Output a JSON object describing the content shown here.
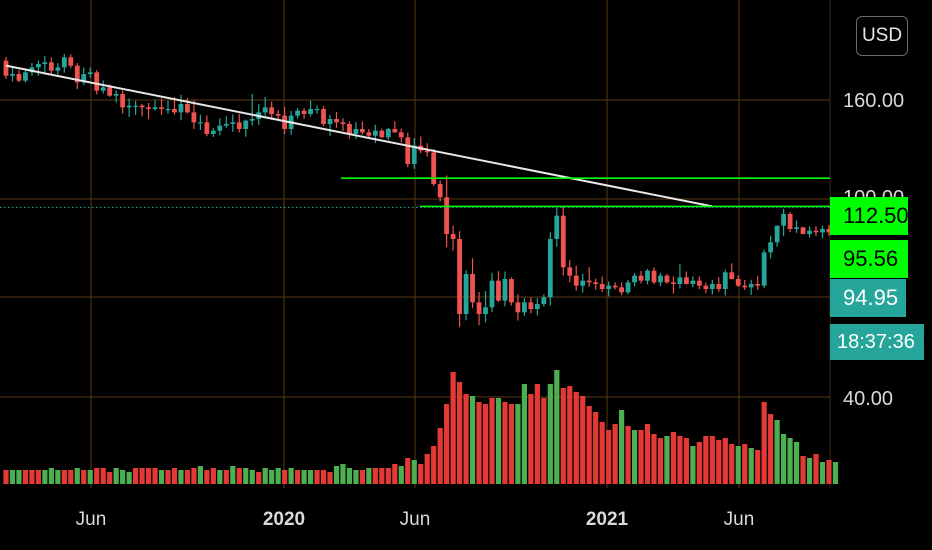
{
  "chart_data": {
    "type": "candlestick",
    "currency": "USD",
    "yticks": [
      {
        "value": 160,
        "label": "160.00"
      },
      {
        "value": 100,
        "label": "100.00"
      },
      {
        "value": 40,
        "label": "40.00"
      }
    ],
    "xticks": [
      {
        "label": "Jun",
        "bold": false
      },
      {
        "label": "2020",
        "bold": true
      },
      {
        "label": "Jun",
        "bold": false
      },
      {
        "label": "2021",
        "bold": true
      },
      {
        "label": "Jun",
        "bold": false
      }
    ],
    "price_levels": [
      {
        "name": "resistance-1",
        "value": 112.5,
        "label": "112.50",
        "color": "#00ff00"
      },
      {
        "name": "resistance-2",
        "value": 95.56,
        "label": "95.56",
        "color": "#00ff00"
      }
    ],
    "last_price": {
      "value": 94.95,
      "label": "94.95",
      "color": "#26a69a"
    },
    "countdown": "18:37:36",
    "trendline": {
      "start": {
        "month": 0.0,
        "price": 180
      },
      "end": {
        "month": 21.8,
        "price": 95.56
      }
    },
    "candles": [
      [
        0.0,
        183,
        185.3,
        172.1,
        174
      ],
      [
        0.2,
        174,
        179.1,
        170.5,
        175
      ],
      [
        0.4,
        175,
        177.4,
        170.1,
        171
      ],
      [
        0.6,
        171,
        177.2,
        169.9,
        176
      ],
      [
        0.8,
        176,
        181.6,
        173.9,
        179
      ],
      [
        1.0,
        179,
        183.1,
        173.9,
        181
      ],
      [
        1.2,
        181,
        185.9,
        176.1,
        182
      ],
      [
        1.4,
        182,
        185.0,
        175.2,
        177
      ],
      [
        1.6,
        177,
        181.5,
        174.7,
        179
      ],
      [
        1.8,
        179,
        187.0,
        175.8,
        185
      ],
      [
        2.0,
        185,
        186.8,
        178.5,
        180
      ],
      [
        2.2,
        180,
        181.5,
        165.9,
        170
      ],
      [
        2.4,
        170,
        178.9,
        168.3,
        175
      ],
      [
        2.6,
        175,
        178.9,
        172.7,
        176
      ],
      [
        2.8,
        176,
        177.3,
        162.8,
        165
      ],
      [
        3.0,
        165,
        171.2,
        163.2,
        167
      ],
      [
        3.2,
        167,
        168.8,
        161.3,
        162
      ],
      [
        3.4,
        162,
        165.2,
        158.0,
        163
      ],
      [
        3.6,
        163,
        164.9,
        151.3,
        155
      ],
      [
        3.8,
        155,
        160.4,
        149.2,
        156
      ],
      [
        4.0,
        156,
        158.9,
        150.5,
        156
      ],
      [
        4.2,
        156,
        157.1,
        149.6,
        155
      ],
      [
        4.4,
        155,
        157.6,
        147.9,
        154
      ],
      [
        4.6,
        154,
        159.3,
        153.1,
        155
      ],
      [
        4.8,
        155,
        160.4,
        150.4,
        154
      ],
      [
        5.0,
        154,
        159.0,
        151.2,
        154
      ],
      [
        5.2,
        154,
        161.1,
        150.6,
        152
      ],
      [
        5.4,
        152,
        162.5,
        147.2,
        157
      ],
      [
        5.6,
        157,
        160.5,
        151.3,
        152
      ],
      [
        5.8,
        152,
        159.2,
        142.0,
        146
      ],
      [
        6.0,
        146,
        150.7,
        141.4,
        146
      ],
      [
        6.2,
        146,
        150.2,
        137.6,
        139
      ],
      [
        6.4,
        139,
        142.6,
        137.2,
        141
      ],
      [
        6.6,
        141,
        148.5,
        138.3,
        144
      ],
      [
        6.8,
        144,
        149.7,
        142.7,
        145
      ],
      [
        7.0,
        145,
        150.8,
        140.3,
        146
      ],
      [
        7.2,
        146,
        151.0,
        140.0,
        142
      ],
      [
        7.4,
        142,
        147.7,
        137.4,
        147
      ],
      [
        7.6,
        147,
        163.1,
        144.1,
        148
      ],
      [
        7.8,
        148,
        157.0,
        144.5,
        152
      ],
      [
        8.0,
        152,
        161.3,
        150.0,
        155
      ],
      [
        8.2,
        155,
        158.5,
        147.5,
        151
      ],
      [
        8.4,
        151,
        153.3,
        147.7,
        150
      ],
      [
        8.6,
        150,
        155.2,
        139.0,
        142
      ],
      [
        8.8,
        142,
        152.8,
        138.5,
        150
      ],
      [
        9.0,
        150,
        154.6,
        148.3,
        153
      ],
      [
        9.2,
        153,
        154.5,
        148.1,
        151
      ],
      [
        9.4,
        151,
        159.0,
        149.5,
        154
      ],
      [
        9.6,
        154,
        156.0,
        151.2,
        154
      ],
      [
        9.8,
        154,
        155.8,
        143.7,
        145
      ],
      [
        10.0,
        145,
        150.4,
        137.9,
        148
      ],
      [
        10.2,
        148,
        152.2,
        142.8,
        146
      ],
      [
        10.4,
        146,
        148.5,
        140.8,
        145
      ],
      [
        10.6,
        145,
        146.6,
        136.2,
        139
      ],
      [
        10.8,
        139,
        146.1,
        136.0,
        142
      ],
      [
        11.0,
        142,
        146.5,
        138.6,
        140
      ],
      [
        11.2,
        140,
        142.0,
        136.0,
        138
      ],
      [
        11.4,
        138,
        144.5,
        133.6,
        141
      ],
      [
        11.6,
        141,
        142.2,
        136.7,
        137
      ],
      [
        11.8,
        137,
        142.7,
        135.4,
        142
      ],
      [
        12.0,
        142,
        146.6,
        139.7,
        140
      ],
      [
        12.2,
        140,
        142.3,
        133.9,
        137
      ],
      [
        12.4,
        137,
        139.7,
        119.1,
        121
      ],
      [
        12.6,
        121,
        136.6,
        118.1,
        132
      ],
      [
        12.8,
        132,
        137.5,
        127.4,
        129
      ],
      [
        13.0,
        129,
        133.4,
        125.5,
        128
      ],
      [
        13.2,
        128,
        130.0,
        107.8,
        109
      ],
      [
        13.4,
        109,
        111.2,
        98.5,
        101
      ],
      [
        13.6,
        101,
        114.1,
        71.0,
        79
      ],
      [
        13.8,
        79,
        83.9,
        69.1,
        76
      ],
      [
        14.0,
        76,
        80.7,
        23.3,
        31
      ],
      [
        14.2,
        31,
        57.3,
        27.2,
        55
      ],
      [
        14.4,
        55,
        64.4,
        34.5,
        38
      ],
      [
        14.6,
        38,
        44.2,
        24.3,
        31
      ],
      [
        14.8,
        31,
        44.8,
        26.0,
        35
      ],
      [
        15.0,
        35,
        55.7,
        32.2,
        51
      ],
      [
        15.2,
        51,
        56.7,
        38.3,
        39
      ],
      [
        15.4,
        39,
        56.5,
        35.6,
        52
      ],
      [
        15.6,
        52,
        53.0,
        36.1,
        38
      ],
      [
        15.8,
        38,
        42.8,
        27.1,
        32
      ],
      [
        16.0,
        32,
        40.5,
        29.9,
        38
      ],
      [
        16.2,
        38,
        41.1,
        31.4,
        34
      ],
      [
        16.4,
        34,
        40.6,
        30.1,
        37
      ],
      [
        16.6,
        37,
        42.9,
        35.4,
        41
      ],
      [
        16.8,
        41,
        80.2,
        36.0,
        76
      ],
      [
        17.0,
        76,
        94.7,
        71.4,
        90
      ],
      [
        17.2,
        90,
        95.9,
        54.1,
        59
      ],
      [
        17.4,
        59,
        63.4,
        50.1,
        54
      ],
      [
        17.6,
        54,
        60.0,
        45.0,
        48
      ],
      [
        17.8,
        48,
        55.1,
        43.9,
        51
      ],
      [
        18.0,
        51,
        59.0,
        47.4,
        50
      ],
      [
        18.2,
        50,
        52.2,
        45.5,
        49
      ],
      [
        18.4,
        49,
        53.5,
        44.2,
        46
      ],
      [
        18.6,
        46,
        50.6,
        41.6,
        48
      ],
      [
        18.8,
        48,
        50.1,
        45.7,
        47
      ],
      [
        19.0,
        47,
        50.0,
        42.2,
        44
      ],
      [
        19.2,
        44,
        51.4,
        42.8,
        50
      ],
      [
        19.4,
        50,
        55.5,
        47.6,
        54
      ],
      [
        19.6,
        54,
        56.8,
        49.3,
        51
      ],
      [
        19.8,
        51,
        58.0,
        48.8,
        57
      ],
      [
        20.0,
        57,
        58.9,
        49.0,
        50
      ],
      [
        20.2,
        50,
        55.7,
        47.6,
        54
      ],
      [
        20.4,
        54,
        55.0,
        49.2,
        50
      ],
      [
        20.6,
        50,
        53.5,
        43.2,
        49
      ],
      [
        20.8,
        49,
        60.9,
        46.3,
        53
      ],
      [
        21.0,
        53,
        56.5,
        48.7,
        49
      ],
      [
        21.2,
        49,
        53.5,
        47.1,
        51
      ],
      [
        21.4,
        51,
        53.5,
        45.9,
        48
      ],
      [
        21.6,
        48,
        49.9,
        43.5,
        46
      ],
      [
        21.8,
        46,
        51.5,
        42.7,
        49
      ],
      [
        22.0,
        49,
        53.0,
        44.3,
        46
      ],
      [
        22.2,
        46,
        57.6,
        42.0,
        56
      ],
      [
        22.4,
        56,
        61.4,
        51.9,
        52
      ],
      [
        22.6,
        52,
        54.4,
        47.2,
        48
      ],
      [
        22.8,
        48,
        51.4,
        45.5,
        47
      ],
      [
        23.0,
        47,
        51.6,
        42.5,
        49
      ],
      [
        23.2,
        49,
        53.9,
        45.4,
        48
      ],
      [
        23.4,
        48,
        69.7,
        46.5,
        68
      ],
      [
        23.6,
        68,
        77.9,
        64.3,
        74
      ],
      [
        23.8,
        74,
        84.0,
        71.3,
        84
      ],
      [
        24.0,
        84,
        94.1,
        77.7,
        91
      ],
      [
        24.2,
        91,
        92.2,
        80.2,
        82
      ],
      [
        24.4,
        82,
        87.1,
        79.7,
        83
      ],
      [
        24.6,
        83,
        83.3,
        78.8,
        79
      ],
      [
        24.8,
        79,
        83.6,
        76.9,
        81
      ],
      [
        25.0,
        81,
        83.6,
        77.8,
        80
      ],
      [
        25.2,
        80,
        84.0,
        76.3,
        82
      ],
      [
        25.4,
        82,
        84.5,
        77.9,
        80
      ],
      [
        25.6,
        80,
        95.9,
        78.0,
        95
      ]
    ],
    "volumes": [
      [
        0.0,
        14,
        "r"
      ],
      [
        0.2,
        14,
        "g"
      ],
      [
        0.4,
        14,
        "g"
      ],
      [
        0.6,
        14,
        "r"
      ],
      [
        0.8,
        14,
        "r"
      ],
      [
        1.0,
        14,
        "r"
      ],
      [
        1.2,
        14,
        "g"
      ],
      [
        1.4,
        16,
        "g"
      ],
      [
        1.6,
        14,
        "g"
      ],
      [
        1.8,
        14,
        "r"
      ],
      [
        2.0,
        14,
        "r"
      ],
      [
        2.2,
        16,
        "g"
      ],
      [
        2.4,
        14,
        "r"
      ],
      [
        2.6,
        14,
        "g"
      ],
      [
        2.8,
        16,
        "r"
      ],
      [
        3.0,
        16,
        "r"
      ],
      [
        3.2,
        12,
        "r"
      ],
      [
        3.4,
        16,
        "g"
      ],
      [
        3.6,
        14,
        "g"
      ],
      [
        3.8,
        12,
        "g"
      ],
      [
        4.0,
        16,
        "r"
      ],
      [
        4.2,
        16,
        "r"
      ],
      [
        4.4,
        16,
        "r"
      ],
      [
        4.6,
        16,
        "r"
      ],
      [
        4.8,
        14,
        "g"
      ],
      [
        5.0,
        14,
        "r"
      ],
      [
        5.2,
        16,
        "r"
      ],
      [
        5.4,
        14,
        "g"
      ],
      [
        5.6,
        14,
        "r"
      ],
      [
        5.8,
        16,
        "r"
      ],
      [
        6.0,
        18,
        "g"
      ],
      [
        6.2,
        14,
        "r"
      ],
      [
        6.4,
        16,
        "r"
      ],
      [
        6.6,
        14,
        "g"
      ],
      [
        6.8,
        14,
        "r"
      ],
      [
        7.0,
        18,
        "g"
      ],
      [
        7.2,
        16,
        "r"
      ],
      [
        7.4,
        16,
        "g"
      ],
      [
        7.6,
        14,
        "g"
      ],
      [
        7.8,
        12,
        "r"
      ],
      [
        8.0,
        16,
        "g"
      ],
      [
        8.2,
        14,
        "g"
      ],
      [
        8.4,
        16,
        "g"
      ],
      [
        8.6,
        14,
        "r"
      ],
      [
        8.8,
        16,
        "g"
      ],
      [
        9.0,
        14,
        "r"
      ],
      [
        9.2,
        14,
        "g"
      ],
      [
        9.4,
        14,
        "g"
      ],
      [
        9.6,
        14,
        "r"
      ],
      [
        9.8,
        14,
        "r"
      ],
      [
        10.0,
        12,
        "r"
      ],
      [
        10.2,
        18,
        "g"
      ],
      [
        10.4,
        20,
        "g"
      ],
      [
        10.6,
        16,
        "g"
      ],
      [
        10.8,
        14,
        "g"
      ],
      [
        11.0,
        14,
        "r"
      ],
      [
        11.2,
        16,
        "g"
      ],
      [
        11.4,
        16,
        "r"
      ],
      [
        11.6,
        16,
        "r"
      ],
      [
        11.8,
        16,
        "r"
      ],
      [
        12.0,
        20,
        "r"
      ],
      [
        12.2,
        18,
        "g"
      ],
      [
        12.4,
        26,
        "r"
      ],
      [
        12.6,
        24,
        "g"
      ],
      [
        12.8,
        20,
        "r"
      ],
      [
        13.0,
        30,
        "r"
      ],
      [
        13.2,
        38,
        "r"
      ],
      [
        13.4,
        56,
        "r"
      ],
      [
        13.6,
        80,
        "r"
      ],
      [
        13.8,
        112,
        "r"
      ],
      [
        14.0,
        102,
        "r"
      ],
      [
        14.2,
        90,
        "r"
      ],
      [
        14.4,
        88,
        "g"
      ],
      [
        14.6,
        82,
        "r"
      ],
      [
        14.8,
        80,
        "r"
      ],
      [
        15.0,
        86,
        "r"
      ],
      [
        15.2,
        86,
        "g"
      ],
      [
        15.4,
        82,
        "r"
      ],
      [
        15.6,
        80,
        "r"
      ],
      [
        15.8,
        80,
        "g"
      ],
      [
        16.0,
        100,
        "g"
      ],
      [
        16.2,
        90,
        "r"
      ],
      [
        16.4,
        100,
        "r"
      ],
      [
        16.6,
        86,
        "r"
      ],
      [
        16.8,
        100,
        "g"
      ],
      [
        17.0,
        114,
        "g"
      ],
      [
        17.2,
        96,
        "r"
      ],
      [
        17.4,
        98,
        "r"
      ],
      [
        17.6,
        92,
        "r"
      ],
      [
        17.8,
        88,
        "r"
      ],
      [
        18.0,
        78,
        "r"
      ],
      [
        18.2,
        72,
        "r"
      ],
      [
        18.4,
        62,
        "r"
      ],
      [
        18.6,
        54,
        "r"
      ],
      [
        18.8,
        60,
        "r"
      ],
      [
        19.0,
        74,
        "g"
      ],
      [
        19.2,
        58,
        "r"
      ],
      [
        19.4,
        54,
        "g"
      ],
      [
        19.6,
        54,
        "r"
      ],
      [
        19.8,
        60,
        "r"
      ],
      [
        20.0,
        50,
        "r"
      ],
      [
        20.2,
        46,
        "r"
      ],
      [
        20.4,
        48,
        "g"
      ],
      [
        20.6,
        52,
        "r"
      ],
      [
        20.8,
        48,
        "r"
      ],
      [
        21.0,
        46,
        "r"
      ],
      [
        21.2,
        38,
        "g"
      ],
      [
        21.4,
        42,
        "r"
      ],
      [
        21.6,
        48,
        "r"
      ],
      [
        21.8,
        48,
        "r"
      ],
      [
        22.0,
        44,
        "r"
      ],
      [
        22.2,
        46,
        "r"
      ],
      [
        22.4,
        40,
        "r"
      ],
      [
        22.6,
        38,
        "g"
      ],
      [
        22.8,
        40,
        "r"
      ],
      [
        23.0,
        36,
        "g"
      ],
      [
        23.2,
        34,
        "r"
      ],
      [
        23.4,
        82,
        "r"
      ],
      [
        23.6,
        70,
        "r"
      ],
      [
        23.8,
        64,
        "g"
      ],
      [
        24.0,
        50,
        "g"
      ],
      [
        24.2,
        46,
        "g"
      ],
      [
        24.4,
        42,
        "g"
      ],
      [
        24.6,
        28,
        "r"
      ],
      [
        24.8,
        26,
        "g"
      ],
      [
        25.0,
        30,
        "r"
      ],
      [
        25.2,
        22,
        "g"
      ],
      [
        25.4,
        24,
        "r"
      ],
      [
        25.6,
        22,
        "g"
      ]
    ]
  },
  "colors": {
    "up": "#26a69a",
    "down": "#ef5350",
    "vol_up": "#4caf50",
    "vol_down": "#e53935",
    "grid": "#5b3a14",
    "trend": "#e8e8e8",
    "level": "#00ff00"
  }
}
